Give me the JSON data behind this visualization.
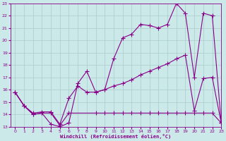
{
  "background_color": "#cce9e9",
  "grid_color": "#aacccc",
  "line_color": "#880088",
  "marker": "+",
  "marker_size": 4,
  "xlim": [
    -0.5,
    23
  ],
  "ylim": [
    13,
    23
  ],
  "xlabel": "Windchill (Refroidissement éolien,°C)",
  "yticks": [
    13,
    14,
    15,
    16,
    17,
    18,
    19,
    20,
    21,
    22,
    23
  ],
  "xticks": [
    0,
    1,
    2,
    3,
    4,
    5,
    6,
    7,
    8,
    9,
    10,
    11,
    12,
    13,
    14,
    15,
    16,
    17,
    18,
    19,
    20,
    21,
    22,
    23
  ],
  "line1_x": [
    0,
    1,
    2,
    3,
    4,
    5,
    6,
    7,
    8,
    9,
    10,
    11,
    12,
    13,
    14,
    15,
    16,
    17,
    18,
    19,
    20,
    21,
    22,
    23
  ],
  "line1_y": [
    15.8,
    14.7,
    14.0,
    14.1,
    13.2,
    13.0,
    13.3,
    16.5,
    17.5,
    15.8,
    16.0,
    18.5,
    20.2,
    20.5,
    21.3,
    21.2,
    21.0,
    21.3,
    23.0,
    22.2,
    17.0,
    22.2,
    22.0,
    13.3
  ],
  "line2_x": [
    0,
    1,
    2,
    3,
    4,
    5,
    6,
    7,
    8,
    9,
    10,
    11,
    12,
    13,
    14,
    15,
    16,
    17,
    18,
    19,
    20,
    21,
    22,
    23
  ],
  "line2_y": [
    15.8,
    14.7,
    14.1,
    14.2,
    14.2,
    13.2,
    15.3,
    16.3,
    15.8,
    15.8,
    16.0,
    16.3,
    16.5,
    16.8,
    17.2,
    17.5,
    17.8,
    18.1,
    18.5,
    18.8,
    14.3,
    16.9,
    17.0,
    13.3
  ],
  "line3_x": [
    0,
    1,
    2,
    3,
    4,
    5,
    6,
    9,
    10,
    11,
    12,
    13,
    14,
    15,
    16,
    17,
    18,
    19,
    20,
    21,
    22,
    23
  ],
  "line3_y": [
    15.8,
    14.7,
    14.0,
    14.1,
    14.1,
    13.1,
    14.1,
    14.1,
    14.1,
    14.1,
    14.1,
    14.1,
    14.1,
    14.1,
    14.1,
    14.1,
    14.1,
    14.1,
    14.1,
    14.1,
    14.1,
    13.3
  ]
}
